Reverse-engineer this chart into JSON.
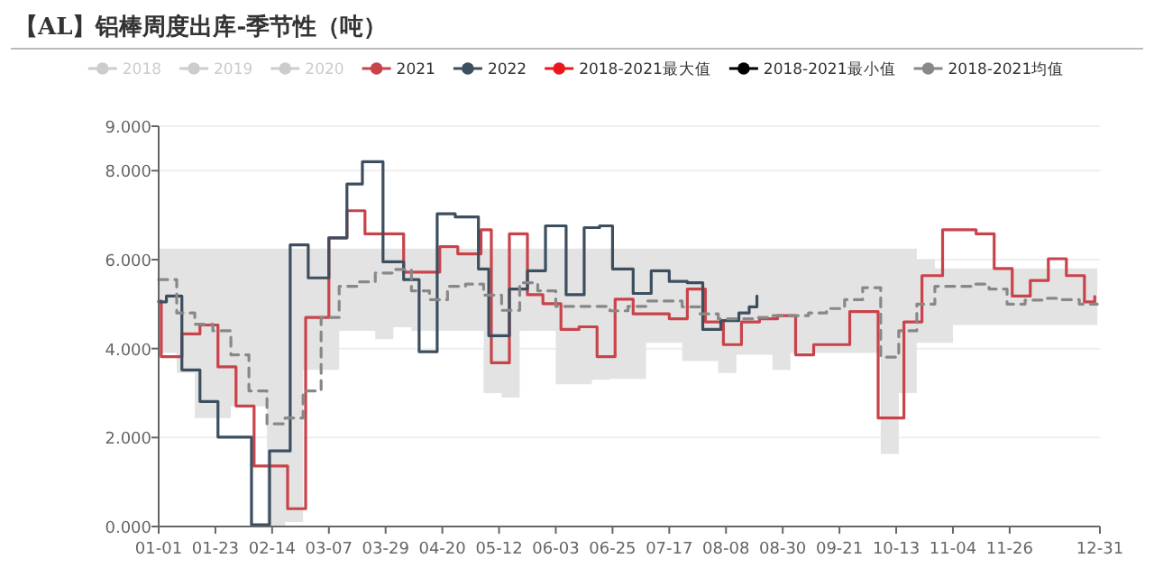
{
  "chart_data": {
    "type": "line",
    "title": "【AL】铝棒周度出库-季节性（吨）",
    "xlim": [
      "--01-01",
      "--12-31"
    ],
    "xticks": [
      {
        "value": "--01-01",
        "label": "01-01"
      },
      {
        "value": "--01-23",
        "label": "01-23"
      },
      {
        "value": "--02-14",
        "label": "02-14"
      },
      {
        "value": "--03-07",
        "label": "03-07"
      },
      {
        "value": "--03-29",
        "label": "03-29"
      },
      {
        "value": "--04-20",
        "label": "04-20"
      },
      {
        "value": "--05-12",
        "label": "05-12"
      },
      {
        "value": "--06-03",
        "label": "06-03"
      },
      {
        "value": "--06-25",
        "label": "06-25"
      },
      {
        "value": "--07-17",
        "label": "07-17"
      },
      {
        "value": "--08-08",
        "label": "08-08"
      },
      {
        "value": "--08-30",
        "label": "08-30"
      },
      {
        "value": "--09-21",
        "label": "09-21"
      },
      {
        "value": "--10-13",
        "label": "10-13"
      },
      {
        "value": "--11-04",
        "label": "11-04"
      },
      {
        "value": "--11-26",
        "label": "11-26"
      },
      {
        "value": "--12-31",
        "label": "12-31"
      }
    ],
    "ylim": [
      0,
      9
    ],
    "yticks": [
      {
        "value": 0,
        "label": "0.000"
      },
      {
        "value": 2,
        "label": "2.000"
      },
      {
        "value": 4,
        "label": "4.000"
      },
      {
        "value": 6,
        "label": "6.000"
      },
      {
        "value": 8,
        "label": "8.000"
      },
      {
        "value": 9,
        "label": "9.000"
      }
    ],
    "grid": "y",
    "legend": "top",
    "series": [
      {
        "name": "2018",
        "color": "#cccccc"
      },
      {
        "name": "2019",
        "color": "#cccccc"
      },
      {
        "name": "2020",
        "color": "#cccccc"
      },
      {
        "name": "2021",
        "color": "#c9434a",
        "type": "step",
        "x": [
          "--01-01",
          "--01-02",
          "--01-10",
          "--01-17",
          "--01-24",
          "--01-31",
          "--02-07",
          "--02-20",
          "--02-27",
          "--03-07",
          "--03-14",
          "--03-21",
          "--04-05",
          "--04-19",
          "--04-26",
          "--05-05",
          "--05-09",
          "--05-16",
          "--05-23",
          "--05-29",
          "--06-05",
          "--06-12",
          "--06-19",
          "--06-26",
          "--07-03",
          "--07-17",
          "--07-24",
          "--07-31",
          "--08-07",
          "--08-14",
          "--08-21",
          "--08-28",
          "--09-04",
          "--09-11",
          "--09-25",
          "--10-06",
          "--10-16",
          "--10-23",
          "--10-31",
          "--11-13",
          "--11-20",
          "--11-27",
          "--12-04",
          "--12-11",
          "--12-18",
          "--12-25",
          "--12-29"
        ],
        "values": [
          5.07,
          3.82,
          4.33,
          4.53,
          3.59,
          2.71,
          1.36,
          0.4,
          4.7,
          6.49,
          7.1,
          6.58,
          5.72,
          6.29,
          6.13,
          6.67,
          3.68,
          6.58,
          5.21,
          5.01,
          4.43,
          4.49,
          3.82,
          5.11,
          4.78,
          4.67,
          5.34,
          4.6,
          4.09,
          4.6,
          4.67,
          4.74,
          3.86,
          4.09,
          4.83,
          2.44,
          4.6,
          5.64,
          6.67,
          6.58,
          5.8,
          5.18,
          5.53,
          6.02,
          5.64,
          5.05,
          5.17
        ]
      },
      {
        "name": "2022",
        "color": "#3d4f5f",
        "type": "step",
        "x": [
          "--01-01",
          "--01-04",
          "--01-10",
          "--01-17",
          "--01-24",
          "--02-06",
          "--02-13",
          "--02-21",
          "--02-28",
          "--03-07",
          "--03-14",
          "--03-20",
          "--03-28",
          "--04-05",
          "--04-11",
          "--04-18",
          "--04-25",
          "--05-04",
          "--05-08",
          "--05-16",
          "--05-23",
          "--05-30",
          "--06-07",
          "--06-14",
          "--06-20",
          "--06-25",
          "--07-03",
          "--07-10",
          "--07-17",
          "--07-24",
          "--07-30",
          "--08-06",
          "--08-13",
          "--08-17",
          "--08-20"
        ],
        "values": [
          5.05,
          5.18,
          3.52,
          2.81,
          2.01,
          0.04,
          1.7,
          6.33,
          5.59,
          6.49,
          7.7,
          8.2,
          5.95,
          5.55,
          3.93,
          7.03,
          6.96,
          5.79,
          4.29,
          5.34,
          5.75,
          6.76,
          5.21,
          6.72,
          6.76,
          5.79,
          5.24,
          5.75,
          5.51,
          5.48,
          4.43,
          4.63,
          4.8,
          4.94,
          5.18
        ]
      },
      {
        "name": "2018-2021最大值",
        "color": "#e8191c"
      },
      {
        "name": "2018-2021最小值",
        "color": "#000000"
      },
      {
        "name": "2018-2021均值",
        "color": "#888888",
        "type": "step",
        "line_style": "dashed",
        "x": [
          "--01-01",
          "--01-08",
          "--01-15",
          "--01-22",
          "--01-29",
          "--02-05",
          "--02-12",
          "--02-19",
          "--02-26",
          "--03-04",
          "--03-11",
          "--03-18",
          "--03-25",
          "--04-01",
          "--04-08",
          "--04-15",
          "--04-22",
          "--04-29",
          "--05-06",
          "--05-13",
          "--05-20",
          "--05-27",
          "--06-03",
          "--06-10",
          "--06-17",
          "--06-24",
          "--07-01",
          "--07-08",
          "--07-15",
          "--07-22",
          "--07-29",
          "--08-05",
          "--08-12",
          "--08-19",
          "--08-26",
          "--09-02",
          "--09-09",
          "--09-16",
          "--09-23",
          "--09-30",
          "--10-07",
          "--10-14",
          "--10-21",
          "--10-28",
          "--11-04",
          "--11-11",
          "--11-18",
          "--11-25",
          "--12-02",
          "--12-09",
          "--12-16",
          "--12-23",
          "--12-30"
        ],
        "values": [
          5.55,
          4.8,
          4.55,
          4.4,
          3.86,
          3.05,
          2.31,
          2.44,
          3.05,
          4.7,
          5.4,
          5.5,
          5.7,
          5.78,
          5.3,
          5.1,
          5.4,
          5.45,
          5.2,
          4.86,
          5.48,
          5.3,
          4.95,
          4.95,
          4.95,
          4.85,
          4.95,
          5.07,
          5.07,
          4.94,
          4.78,
          4.67,
          4.67,
          4.7,
          4.74,
          4.74,
          4.8,
          4.9,
          5.1,
          5.37,
          3.81,
          4.4,
          5.0,
          5.4,
          5.4,
          5.45,
          5.34,
          5.0,
          5.09,
          5.13,
          5.1,
          5.0,
          5.0
        ],
        "lower": [
          3.9,
          3.45,
          2.44,
          2.44,
          2.7,
          2.7,
          0,
          0.1,
          3.52,
          3.52,
          4.4,
          4.4,
          4.21,
          4.48,
          4.4,
          4.4,
          4.4,
          4.4,
          3.0,
          2.9,
          4.4,
          4.4,
          3.2,
          3.2,
          3.3,
          3.32,
          3.32,
          4.13,
          4.13,
          3.72,
          3.72,
          3.45,
          3.86,
          3.86,
          3.52,
          3.9,
          3.9,
          3.9,
          3.9,
          3.9,
          1.63,
          3.0,
          4.13,
          4.13,
          4.53,
          4.53,
          4.53,
          4.53,
          4.53,
          4.53,
          4.53,
          4.53,
          4.53
        ],
        "upper": [
          6.25,
          6.25,
          6.25,
          6.25,
          6.25,
          6.25,
          6.25,
          6.25,
          6.25,
          6.25,
          6.25,
          6.25,
          6.25,
          6.25,
          6.25,
          6.25,
          6.25,
          6.25,
          6.25,
          6.25,
          6.25,
          6.25,
          6.25,
          6.25,
          6.25,
          6.25,
          6.25,
          6.25,
          6.25,
          6.25,
          6.25,
          6.25,
          6.25,
          6.25,
          6.25,
          6.25,
          6.25,
          6.25,
          6.25,
          6.25,
          6.25,
          6.25,
          6.0,
          5.8,
          5.8,
          5.8,
          5.8,
          5.8,
          5.8,
          5.8,
          5.8,
          5.8,
          5.8
        ]
      }
    ]
  }
}
